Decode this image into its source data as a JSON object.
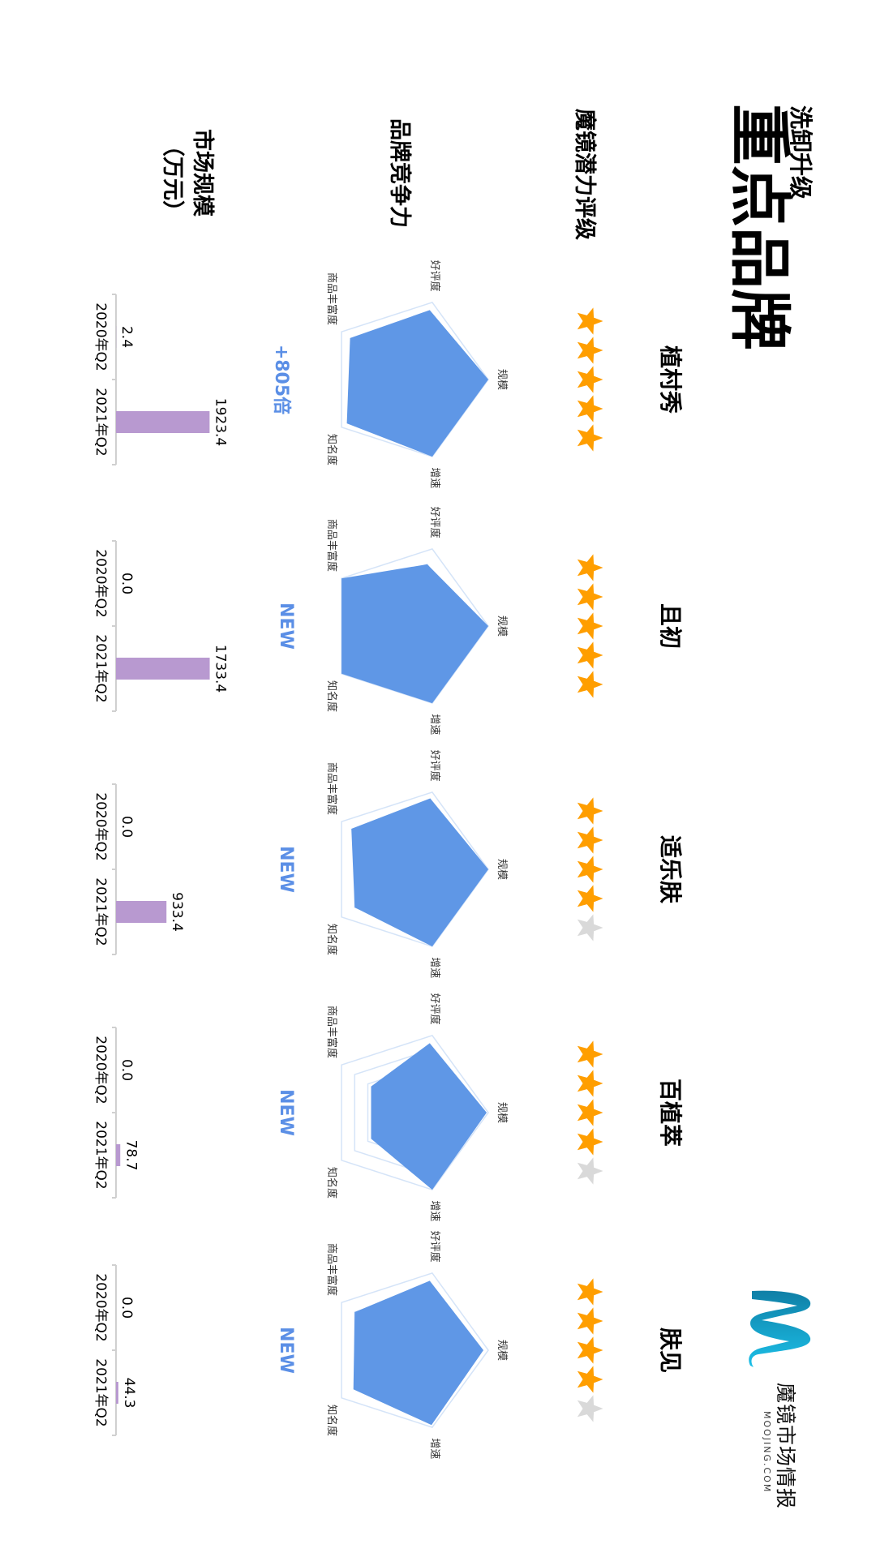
{
  "header": {
    "subtitle": "洗卸升级",
    "title": "重点品牌"
  },
  "logo": {
    "name": "魔镜市场情报",
    "domain": "MOOJING.COM",
    "colors": [
      "#0f7fa6",
      "#1cc0e8"
    ]
  },
  "row_labels": {
    "rating": "魔镜潜力评级",
    "competitiveness": "品牌竞争力",
    "market_size": "市场规模",
    "market_size_unit": "（万元）"
  },
  "colors": {
    "star_filled": "#ff9e00",
    "star_empty": "#d9d9d9",
    "radar_fill": "#5f97e6",
    "radar_grid": "#d5e4f8",
    "bar": "#b899d0",
    "growth_text": "#5b8fe6",
    "axis": "#d0d0d0"
  },
  "chart_data": [
    {
      "type": "radar",
      "brand": "植村秀",
      "rating_stars": 5,
      "rating_max": 5,
      "indicators": [
        "规模",
        "增速",
        "知名度",
        "商品丰富度",
        "好评度"
      ],
      "values": [
        1.0,
        1.0,
        0.92,
        0.87,
        0.9
      ],
      "range": [
        0,
        1
      ],
      "growth_label": "+805倍",
      "bar": {
        "type": "bar",
        "categories": [
          "2020年Q2",
          "2021年Q2"
        ],
        "values": [
          2.4,
          1923.4
        ],
        "labels": [
          "2.4",
          "1923.4"
        ],
        "ylim": [
          0,
          2000
        ]
      }
    },
    {
      "type": "radar",
      "brand": "且初",
      "rating_stars": 5,
      "rating_max": 5,
      "indicators": [
        "规模",
        "增速",
        "知名度",
        "商品丰富度",
        "好评度"
      ],
      "values": [
        1.0,
        1.0,
        1.0,
        1.0,
        0.8
      ],
      "range": [
        0,
        1
      ],
      "growth_label": "NEW",
      "bar": {
        "type": "bar",
        "categories": [
          "2020年Q2",
          "2021年Q2"
        ],
        "values": [
          0.0,
          1733.4
        ],
        "labels": [
          "0.0",
          "1733.4"
        ],
        "ylim": [
          0,
          1800
        ]
      }
    },
    {
      "type": "radar",
      "brand": "适乐肤",
      "rating_stars": 4,
      "rating_max": 5,
      "indicators": [
        "规模",
        "增速",
        "知名度",
        "商品丰富度",
        "好评度"
      ],
      "values": [
        1.0,
        1.0,
        0.8,
        0.85,
        0.92
      ],
      "range": [
        0,
        1
      ],
      "growth_label": "NEW",
      "bar": {
        "type": "bar",
        "categories": [
          "2020年Q2",
          "2021年Q2"
        ],
        "values": [
          0.0,
          933.4
        ],
        "labels": [
          "0.0",
          "933.4"
        ],
        "ylim": [
          0,
          1800
        ]
      }
    },
    {
      "type": "radar",
      "brand": "百植萃",
      "rating_stars": 4,
      "rating_max": 5,
      "indicators": [
        "规模",
        "增速",
        "知名度",
        "商品丰富度",
        "好评度"
      ],
      "values": [
        0.98,
        1.0,
        0.55,
        0.55,
        0.9
      ],
      "range": [
        0,
        1
      ],
      "growth_label": "NEW",
      "bar": {
        "type": "bar",
        "categories": [
          "2020年Q2",
          "2021年Q2"
        ],
        "values": [
          0.0,
          78.7
        ],
        "labels": [
          "0.0",
          "78.7"
        ],
        "ylim": [
          0,
          1800
        ]
      }
    },
    {
      "type": "radar",
      "brand": "肤见",
      "rating_stars": 4,
      "rating_max": 5,
      "indicators": [
        "规模",
        "增速",
        "知名度",
        "商品丰富度",
        "好评度"
      ],
      "values": [
        0.94,
        0.97,
        0.82,
        0.8,
        0.9
      ],
      "range": [
        0,
        1
      ],
      "growth_label": "NEW",
      "bar": {
        "type": "bar",
        "categories": [
          "2020年Q2",
          "2021年Q2"
        ],
        "values": [
          0.0,
          44.3
        ],
        "labels": [
          "0.0",
          "44.3"
        ],
        "ylim": [
          0,
          1800
        ]
      }
    }
  ]
}
